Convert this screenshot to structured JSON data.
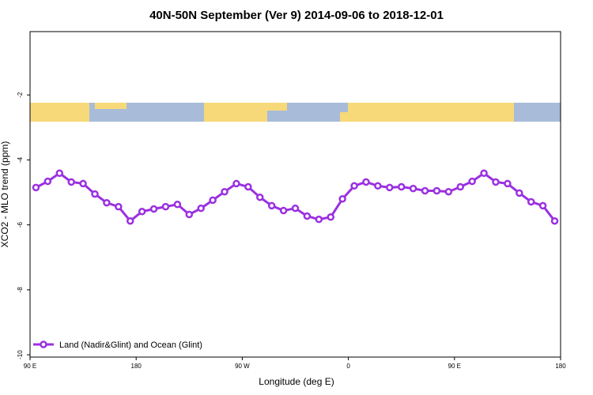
{
  "chart_data": {
    "type": "line",
    "title": "40N-50N September (Ver 9)   2014-09-06 to 2018-12-01",
    "xlabel": "Longitude (deg E)",
    "ylabel": "XCO2 - MLO trend (ppm)",
    "x": [
      95,
      105,
      115,
      125,
      135,
      145,
      155,
      165,
      175,
      185,
      195,
      205,
      215,
      225,
      235,
      245,
      255,
      265,
      275,
      285,
      295,
      305,
      315,
      325,
      335,
      345,
      355,
      365,
      375,
      385,
      395,
      405,
      415,
      425,
      435,
      445,
      455,
      465,
      475,
      485,
      495,
      505,
      515,
      525,
      535
    ],
    "series": [
      {
        "name": "Land (Nadir&Glint) and Ocean (Glint)",
        "color": "#9b30e0",
        "values": [
          -4.85,
          -4.66,
          -4.41,
          -4.68,
          -4.73,
          -5.05,
          -5.32,
          -5.44,
          -5.88,
          -5.59,
          -5.51,
          -5.44,
          -5.37,
          -5.68,
          -5.49,
          -5.24,
          -4.98,
          -4.73,
          -4.83,
          -5.15,
          -5.41,
          -5.56,
          -5.49,
          -5.73,
          -5.83,
          -5.76,
          -5.2,
          -4.8,
          -4.68,
          -4.8,
          -4.85,
          -4.83,
          -4.88,
          -4.95,
          -4.95,
          -4.98,
          -4.83,
          -4.66,
          -4.41,
          -4.68,
          -4.73,
          -5.02,
          -5.29,
          -5.41,
          -5.88
        ]
      }
    ],
    "xlim": [
      90,
      540
    ],
    "xticks": [
      {
        "value": 90,
        "label": "90 E"
      },
      {
        "value": 180,
        "label": "180"
      },
      {
        "value": 270,
        "label": "90 W"
      },
      {
        "value": 360,
        "label": "0"
      },
      {
        "value": 450,
        "label": "90 E"
      },
      {
        "value": 540,
        "label": "180"
      }
    ],
    "ylim": [
      -10.07,
      -0.05
    ],
    "yticks": [
      -2,
      -4,
      -6,
      -8,
      -10
    ],
    "legend": "bottom-left"
  }
}
